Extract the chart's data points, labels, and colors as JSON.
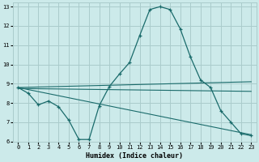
{
  "xlabel": "Humidex (Indice chaleur)",
  "ylabel": "",
  "bg_color": "#cceaea",
  "line_color": "#1a6b6b",
  "grid_color": "#aacccc",
  "xlim": [
    -0.5,
    23.5
  ],
  "ylim": [
    6,
    13.2
  ],
  "xticks": [
    0,
    1,
    2,
    3,
    4,
    5,
    6,
    7,
    8,
    9,
    10,
    11,
    12,
    13,
    14,
    15,
    16,
    17,
    18,
    19,
    20,
    21,
    22,
    23
  ],
  "yticks": [
    6,
    7,
    8,
    9,
    10,
    11,
    12,
    13
  ],
  "curve1_x": [
    0,
    1,
    2,
    3,
    4,
    5,
    6,
    7,
    8,
    9,
    10,
    11,
    12,
    13,
    14,
    15,
    16,
    17,
    18,
    19,
    20,
    21,
    22,
    23
  ],
  "curve1_y": [
    8.8,
    8.5,
    7.9,
    8.1,
    7.8,
    7.1,
    6.1,
    6.1,
    7.85,
    8.85,
    9.5,
    10.1,
    11.5,
    12.85,
    13.0,
    12.85,
    11.85,
    10.4,
    9.2,
    8.8,
    7.6,
    7.0,
    6.4,
    6.3
  ],
  "line1_x": [
    0,
    23
  ],
  "line1_y": [
    8.8,
    9.1
  ],
  "line2_x": [
    0,
    23
  ],
  "line2_y": [
    8.75,
    8.6
  ],
  "line3_x": [
    0,
    23
  ],
  "line3_y": [
    8.8,
    6.35
  ],
  "xlabel_fontsize": 6.0,
  "tick_fontsize": 5.0
}
